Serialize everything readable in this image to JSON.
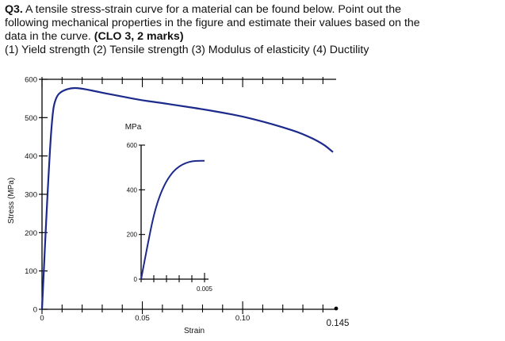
{
  "question": {
    "number": "Q3.",
    "text_line1": "A tensile stress-strain curve for a material can be found below. Point out the",
    "text_line2": "following mechanical properties in the figure and estimate their values based on the",
    "text_line3_pre": "data in the curve.",
    "clo": "(CLO 3, 2 marks)",
    "items": "(1) Yield strength (2) Tensile strength (3) Modulus of elasticity (4) Ductility"
  },
  "chart_data": [
    {
      "type": "line",
      "title": "",
      "xlabel": "Strain",
      "ylabel": "Stress (MPa)",
      "xlim": [
        0,
        0.145
      ],
      "ylim": [
        0,
        600
      ],
      "x_ticks": [
        "0",
        "0.05",
        "0.10",
        "0.145"
      ],
      "y_ticks": [
        "0",
        "100",
        "200",
        "300",
        "400",
        "500",
        "600"
      ],
      "series": [
        {
          "x": [
            0,
            0.0025,
            0.005,
            0.007,
            0.01,
            0.015,
            0.02,
            0.03,
            0.04,
            0.05,
            0.06,
            0.07,
            0.08,
            0.09,
            0.1,
            0.11,
            0.12,
            0.13,
            0.14,
            0.145
          ],
          "values": [
            0,
            280,
            510,
            555,
            570,
            578,
            576,
            565,
            555,
            545,
            538,
            530,
            522,
            513,
            503,
            490,
            475,
            458,
            432,
            410
          ]
        }
      ]
    },
    {
      "type": "line",
      "title": "",
      "ylabel": "MPa",
      "xlim": [
        0,
        0.007
      ],
      "ylim": [
        0,
        600
      ],
      "x_ticks": [
        "0",
        "0.005"
      ],
      "y_ticks": [
        "0",
        "200",
        "400",
        "600"
      ],
      "series": [
        {
          "x": [
            0,
            0.0005,
            0.001,
            0.0015,
            0.002,
            0.0025,
            0.003,
            0.0035,
            0.004,
            0.0045,
            0.005
          ],
          "values": [
            0,
            150,
            290,
            380,
            440,
            480,
            505,
            520,
            528,
            530,
            530
          ]
        }
      ]
    }
  ]
}
